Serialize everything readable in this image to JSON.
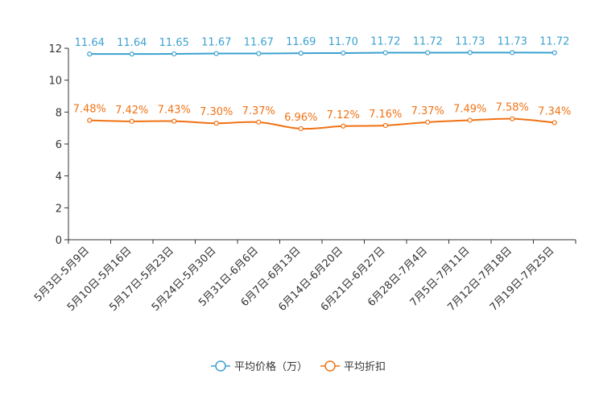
{
  "chart_data": {
    "type": "line",
    "title": "",
    "xlabel": "",
    "ylabel": "",
    "ylim": [
      0,
      12
    ],
    "yticks": [
      0,
      2,
      4,
      6,
      8,
      10,
      12
    ],
    "grid": false,
    "legend_position": "bottom",
    "categories": [
      "5月3日-5月9日",
      "5月10日-5月16日",
      "5月17日-5月23日",
      "5月24日-5月30日",
      "5月31日-6月6日",
      "6月7日-6月13日",
      "6月14日-6月20日",
      "6月21日-6月27日",
      "6月28日-7月4日",
      "7月5日-7月11日",
      "7月12日-7月18日",
      "7月19日-7月25日"
    ],
    "series": [
      {
        "name": "平均价格（万）",
        "color": "#3ba1d0",
        "values": [
          11.64,
          11.64,
          11.65,
          11.67,
          11.67,
          11.69,
          11.7,
          11.72,
          11.72,
          11.73,
          11.73,
          11.72
        ],
        "labels": [
          "11.64",
          "11.64",
          "11.65",
          "11.67",
          "11.67",
          "11.69",
          "11.70",
          "11.72",
          "11.72",
          "11.73",
          "11.73",
          "11.72"
        ]
      },
      {
        "name": "平均折扣",
        "color": "#f07214",
        "values": [
          7.48,
          7.42,
          7.43,
          7.3,
          7.37,
          6.96,
          7.12,
          7.16,
          7.37,
          7.49,
          7.58,
          7.34
        ],
        "labels": [
          "7.48%",
          "7.42%",
          "7.43%",
          "7.30%",
          "7.37%",
          "6.96%",
          "7.12%",
          "7.16%",
          "7.37%",
          "7.49%",
          "7.58%",
          "7.34%"
        ]
      }
    ]
  }
}
